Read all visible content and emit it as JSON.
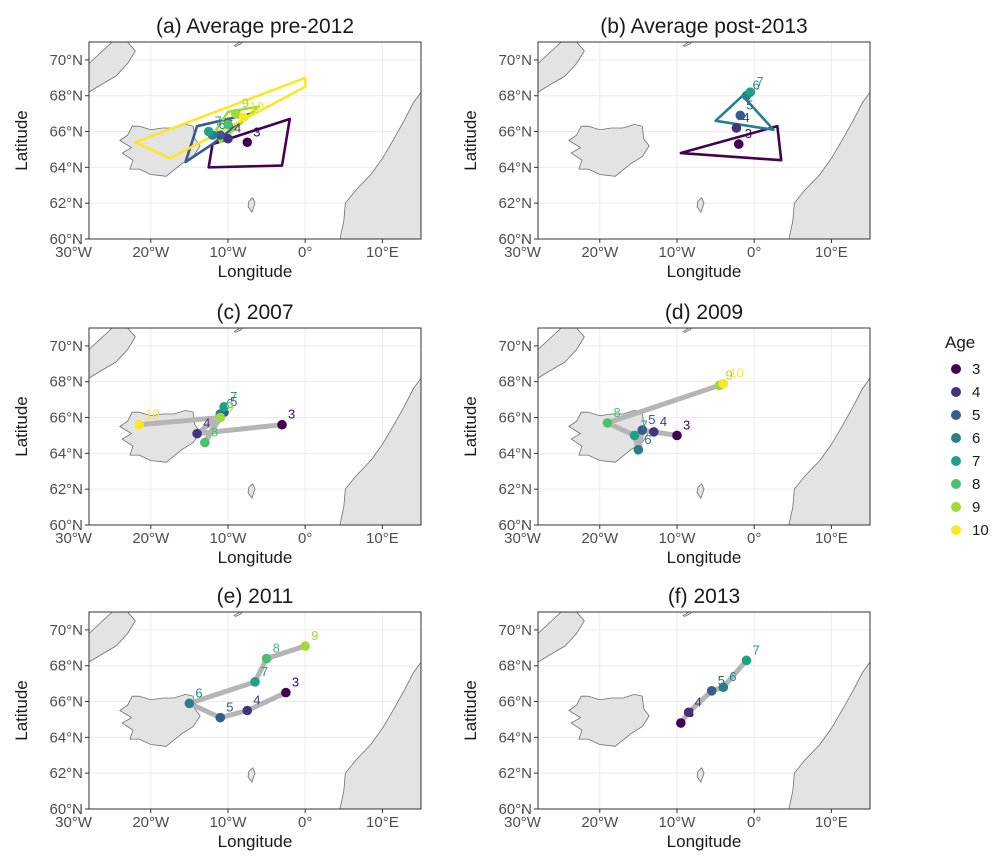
{
  "figure": {
    "xlabel": "Longitude",
    "ylabel": "Latitude",
    "x_ticks": [
      {
        "value": -30,
        "label": "30°W"
      },
      {
        "value": -20,
        "label": "20°W"
      },
      {
        "value": -10,
        "label": "10°W"
      },
      {
        "value": 0,
        "label": "0°"
      },
      {
        "value": 10,
        "label": "10°E"
      }
    ],
    "y_ticks": [
      {
        "value": 60,
        "label": "60°N"
      },
      {
        "value": 62,
        "label": "62°N"
      },
      {
        "value": 64,
        "label": "64°N"
      },
      {
        "value": 66,
        "label": "66°N"
      },
      {
        "value": 68,
        "label": "68°N"
      },
      {
        "value": 70,
        "label": "70°N"
      }
    ],
    "xlim": [
      -28,
      15
    ],
    "ylim": [
      60,
      71
    ],
    "colors": {
      "land": "#e3e3e3",
      "land_outline": "#6f6f6f",
      "grid": "#ebebeb",
      "track": "#b5b5b5",
      "panel_border": "#333333"
    },
    "legend": {
      "title": "Age",
      "position": "right",
      "items": [
        {
          "label": "3",
          "color": "#440154"
        },
        {
          "label": "4",
          "color": "#46337e"
        },
        {
          "label": "5",
          "color": "#365c8d"
        },
        {
          "label": "6",
          "color": "#277f8e"
        },
        {
          "label": "7",
          "color": "#1fa187"
        },
        {
          "label": "8",
          "color": "#4ac16d"
        },
        {
          "label": "9",
          "color": "#a0da39"
        },
        {
          "label": "10",
          "color": "#fde725"
        }
      ]
    }
  },
  "chart_data": [
    {
      "type": "scatter",
      "title": "(a) Average pre-2012",
      "series": [
        {
          "age": 3,
          "lon": -7.5,
          "lat": 65.4
        },
        {
          "age": 4,
          "lon": -10.0,
          "lat": 65.6
        },
        {
          "age": 5,
          "lon": -11.0,
          "lat": 65.8
        },
        {
          "age": 6,
          "lon": -12.0,
          "lat": 65.8
        },
        {
          "age": 7,
          "lon": -12.5,
          "lat": 66.0
        },
        {
          "age": 8,
          "lon": -10.0,
          "lat": 66.4
        },
        {
          "age": 9,
          "lon": -9.0,
          "lat": 67.0
        },
        {
          "age": 10,
          "lon": -8.0,
          "lat": 66.8
        }
      ],
      "polygons": [
        {
          "age": 3,
          "points": [
            [
              -12.0,
              65.3
            ],
            [
              -2.0,
              66.7
            ],
            [
              -3.0,
              64.1
            ],
            [
              -12.5,
              64.0
            ]
          ]
        },
        {
          "age": 5,
          "points": [
            [
              -14.0,
              66.3
            ],
            [
              -7.0,
              67.0
            ],
            [
              -12.0,
              65.3
            ],
            [
              -15.5,
              64.3
            ]
          ]
        },
        {
          "age": 9,
          "points": [
            [
              -10.0,
              67.1
            ],
            [
              -6.0,
              67.4
            ],
            [
              -11.0,
              65.4
            ],
            [
              -11.5,
              66.1
            ]
          ]
        },
        {
          "age": 10,
          "points": [
            [
              -22.0,
              65.4
            ],
            [
              0.0,
              69.0
            ],
            [
              0.0,
              68.5
            ],
            [
              -17.5,
              64.5
            ]
          ]
        }
      ],
      "track": false
    },
    {
      "type": "scatter",
      "title": "(b) Average post-2013",
      "series": [
        {
          "age": 3,
          "lon": -2.0,
          "lat": 65.3
        },
        {
          "age": 4,
          "lon": -2.3,
          "lat": 66.2
        },
        {
          "age": 5,
          "lon": -1.8,
          "lat": 66.9
        },
        {
          "age": 6,
          "lon": -1.0,
          "lat": 68.0
        },
        {
          "age": 7,
          "lon": -0.5,
          "lat": 68.2
        }
      ],
      "polygons": [
        {
          "age": 3,
          "points": [
            [
              -9.5,
              64.8
            ],
            [
              3.0,
              66.3
            ],
            [
              3.5,
              64.4
            ]
          ]
        },
        {
          "age": 6,
          "points": [
            [
              -5.0,
              66.6
            ],
            [
              -1.5,
              68.0
            ],
            [
              2.5,
              66.1
            ]
          ]
        }
      ],
      "track": false
    },
    {
      "type": "line",
      "title": "(c) 2007",
      "series": [
        {
          "age": 3,
          "lon": -3.0,
          "lat": 65.6
        },
        {
          "age": 4,
          "lon": -14.0,
          "lat": 65.1
        },
        {
          "age": 5,
          "lon": -10.5,
          "lat": 66.3
        },
        {
          "age": 6,
          "lon": -11.0,
          "lat": 66.2
        },
        {
          "age": 7,
          "lon": -10.5,
          "lat": 66.6
        },
        {
          "age": 8,
          "lon": -13.0,
          "lat": 64.6
        },
        {
          "age": 9,
          "lon": -11.0,
          "lat": 66.0
        },
        {
          "age": 10,
          "lon": -21.5,
          "lat": 65.6
        }
      ],
      "track": true
    },
    {
      "type": "line",
      "title": "(d) 2009",
      "series": [
        {
          "age": 3,
          "lon": -10.0,
          "lat": 65.0
        },
        {
          "age": 4,
          "lon": -13.0,
          "lat": 65.2
        },
        {
          "age": 5,
          "lon": -14.5,
          "lat": 65.3
        },
        {
          "age": 6,
          "lon": -15.0,
          "lat": 64.2
        },
        {
          "age": 7,
          "lon": -15.5,
          "lat": 65.0
        },
        {
          "age": 8,
          "lon": -19.0,
          "lat": 65.7
        },
        {
          "age": 9,
          "lon": -4.5,
          "lat": 67.8
        },
        {
          "age": 10,
          "lon": -4.0,
          "lat": 67.9
        }
      ],
      "track": true
    },
    {
      "type": "line",
      "title": "(e) 2011",
      "series": [
        {
          "age": 3,
          "lon": -2.5,
          "lat": 66.5
        },
        {
          "age": 4,
          "lon": -7.5,
          "lat": 65.5
        },
        {
          "age": 5,
          "lon": -11.0,
          "lat": 65.1
        },
        {
          "age": 6,
          "lon": -15.0,
          "lat": 65.9
        },
        {
          "age": 7,
          "lon": -6.5,
          "lat": 67.1
        },
        {
          "age": 8,
          "lon": -5.0,
          "lat": 68.4
        },
        {
          "age": 9,
          "lon": 0.0,
          "lat": 69.1
        }
      ],
      "track": true
    },
    {
      "type": "line",
      "title": "(f) 2013",
      "series": [
        {
          "age": 3,
          "lon": -9.5,
          "lat": 64.8
        },
        {
          "age": 4,
          "lon": -8.5,
          "lat": 65.4
        },
        {
          "age": 5,
          "lon": -5.5,
          "lat": 66.6
        },
        {
          "age": 6,
          "lon": -4.0,
          "lat": 66.8
        },
        {
          "age": 7,
          "lon": -1.0,
          "lat": 68.3
        }
      ],
      "track": true
    }
  ]
}
